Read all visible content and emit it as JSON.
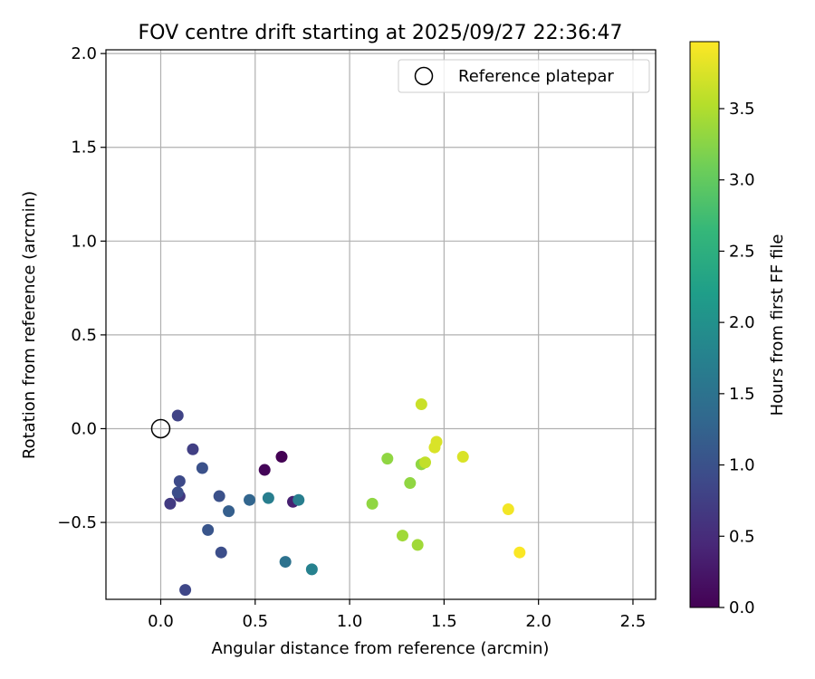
{
  "chart_data": {
    "type": "scatter",
    "title": "FOV centre drift starting at 2025/09/27 22:36:47",
    "xlabel": "Angular distance from reference (arcmin)",
    "ylabel": "Rotation from reference (arcmin)",
    "xlim": [
      -0.29,
      2.62
    ],
    "ylim": [
      -0.91,
      2.02
    ],
    "xticks": [
      0.0,
      0.5,
      1.0,
      1.5,
      2.0,
      2.5
    ],
    "xtick_labels": [
      "0.0",
      "0.5",
      "1.0",
      "1.5",
      "2.0",
      "2.5"
    ],
    "yticks": [
      -0.5,
      0.0,
      0.5,
      1.0,
      1.5,
      2.0
    ],
    "ytick_labels": [
      "−0.5",
      "0.0",
      "0.5",
      "1.0",
      "1.5",
      "2.0"
    ],
    "grid": true,
    "legend": {
      "position": "top-right",
      "label": "Reference platepar"
    },
    "reference": {
      "x": 0.0,
      "y": 0.0
    },
    "colorbar": {
      "label": "Hours from first FF file",
      "range": [
        0.0,
        3.97
      ],
      "ticks": [
        0.0,
        0.5,
        1.0,
        1.5,
        2.0,
        2.5,
        3.0,
        3.5
      ],
      "tick_labels": [
        "0.0",
        "0.5",
        "1.0",
        "1.5",
        "2.0",
        "2.5",
        "3.0",
        "3.5"
      ],
      "colormap": [
        "#440154",
        "#482878",
        "#3e4989",
        "#31688e",
        "#26828e",
        "#1f9e89",
        "#35b779",
        "#6ece58",
        "#b5de2b",
        "#fde725"
      ]
    },
    "points": [
      {
        "x": 0.64,
        "y": -0.15,
        "c": 0.0
      },
      {
        "x": 0.55,
        "y": -0.22,
        "c": 0.05
      },
      {
        "x": 0.7,
        "y": -0.39,
        "c": 0.35
      },
      {
        "x": 0.1,
        "y": -0.36,
        "c": 0.65
      },
      {
        "x": 0.05,
        "y": -0.4,
        "c": 0.7
      },
      {
        "x": 0.17,
        "y": -0.11,
        "c": 0.75
      },
      {
        "x": 0.09,
        "y": 0.07,
        "c": 0.8
      },
      {
        "x": 0.13,
        "y": -0.86,
        "c": 0.85
      },
      {
        "x": 0.1,
        "y": -0.28,
        "c": 0.9
      },
      {
        "x": 0.09,
        "y": -0.34,
        "c": 0.95
      },
      {
        "x": 0.32,
        "y": -0.66,
        "c": 0.95
      },
      {
        "x": 0.22,
        "y": -0.21,
        "c": 1.0
      },
      {
        "x": 0.31,
        "y": -0.36,
        "c": 1.0
      },
      {
        "x": 0.25,
        "y": -0.54,
        "c": 1.05
      },
      {
        "x": 0.36,
        "y": -0.44,
        "c": 1.2
      },
      {
        "x": 0.47,
        "y": -0.38,
        "c": 1.3
      },
      {
        "x": 0.66,
        "y": -0.71,
        "c": 1.5
      },
      {
        "x": 0.57,
        "y": -0.37,
        "c": 1.7
      },
      {
        "x": 0.73,
        "y": -0.38,
        "c": 1.7
      },
      {
        "x": 0.8,
        "y": -0.75,
        "c": 1.75
      },
      {
        "x": 1.12,
        "y": -0.4,
        "c": 3.3
      },
      {
        "x": 1.2,
        "y": -0.16,
        "c": 3.3
      },
      {
        "x": 1.28,
        "y": -0.57,
        "c": 3.4
      },
      {
        "x": 1.32,
        "y": -0.29,
        "c": 3.3
      },
      {
        "x": 1.36,
        "y": -0.62,
        "c": 3.4
      },
      {
        "x": 1.38,
        "y": -0.19,
        "c": 3.3
      },
      {
        "x": 1.4,
        "y": -0.18,
        "c": 3.6
      },
      {
        "x": 1.38,
        "y": 0.13,
        "c": 3.65
      },
      {
        "x": 1.45,
        "y": -0.1,
        "c": 3.75
      },
      {
        "x": 1.46,
        "y": -0.07,
        "c": 3.75
      },
      {
        "x": 1.6,
        "y": -0.15,
        "c": 3.75
      },
      {
        "x": 1.84,
        "y": -0.43,
        "c": 3.9
      },
      {
        "x": 1.9,
        "y": -0.66,
        "c": 3.95
      }
    ]
  }
}
